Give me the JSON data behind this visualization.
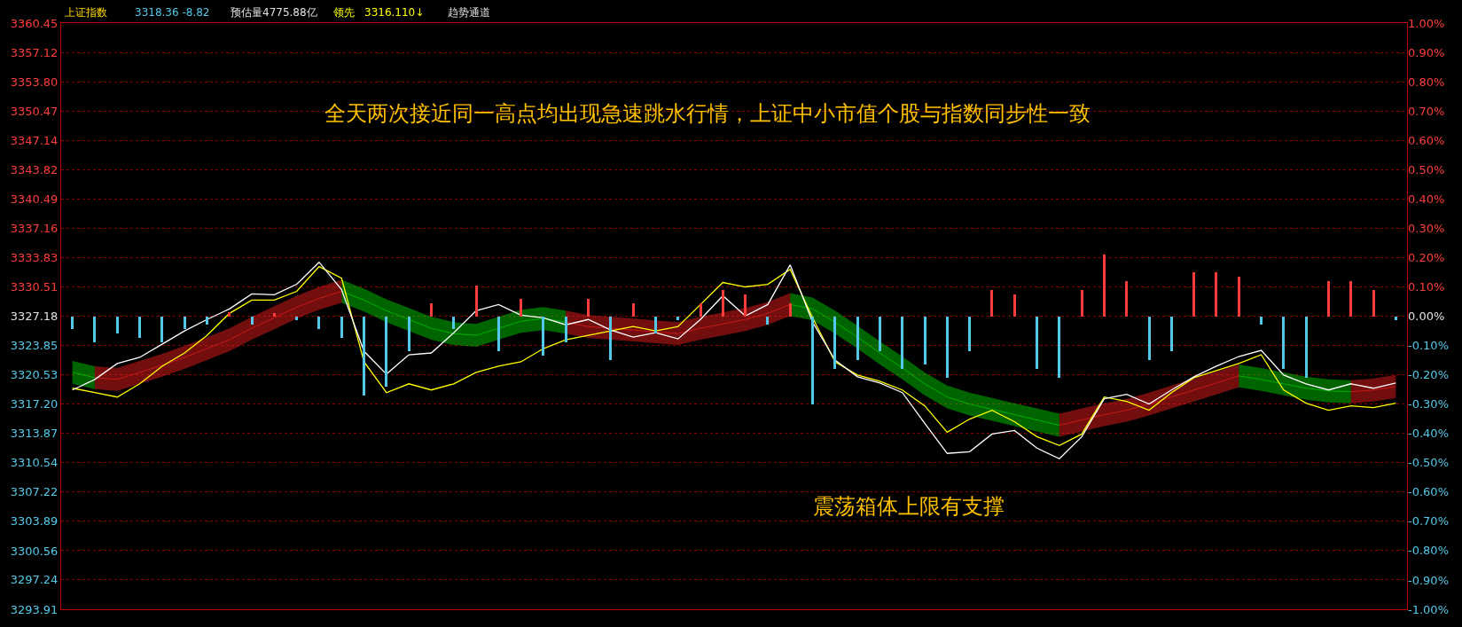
{
  "chart_data": {
    "type": "line",
    "annotations": [
      "上证指数",
      "3318.36 -8.82",
      "预估量4775.88亿",
      "领先",
      "3316.110↓",
      "趋势通道",
      "全天两次接近同一高点均出现急速跳水行情，上证中小市值个股与指数同步性一致",
      "震荡箱体上限有支撑"
    ],
    "categories": [
      null,
      null,
      null,
      null,
      null,
      null,
      null,
      null,
      null,
      null,
      null,
      null,
      null,
      null,
      null,
      null,
      null,
      null,
      null,
      null,
      null,
      null,
      null,
      null,
      null,
      null,
      null,
      null,
      null,
      null,
      null,
      null,
      null,
      null,
      null,
      null,
      null,
      null,
      null,
      null,
      null,
      null,
      null,
      null,
      null,
      null,
      null,
      null,
      null,
      null,
      null,
      null,
      null,
      null,
      null,
      null,
      null,
      null,
      null,
      null
    ],
    "series": [
      {
        "type": "bar",
        "values": [
          -1.5,
          -3,
          -2,
          -2.5,
          -3,
          -1.5,
          -1,
          0.5,
          -1,
          0.4,
          -0.5,
          -1.5,
          -2.5,
          -9,
          -8,
          -4,
          1.5,
          -1.5,
          3.5,
          -4,
          2,
          -4.5,
          -3,
          2,
          -5,
          1.5,
          -2,
          -0.5,
          1.5,
          3,
          2.5,
          -1,
          1.5,
          -10,
          -6,
          -5,
          -4,
          -6,
          -5.5,
          -7,
          -4,
          3,
          2.5,
          -6,
          -7,
          3,
          7,
          4,
          -5,
          -4,
          5,
          5,
          4.5,
          -1,
          -6,
          -7,
          4,
          4,
          3,
          -0.5
        ],
        "base": [
          3327.18,
          3327.18,
          3327.18,
          3327.18,
          3327.18,
          3327.18,
          3327.18,
          3327.18,
          3327.18,
          3327.18,
          3327.18,
          3327.18,
          3327.18,
          3327.18,
          3327.18,
          3327.18,
          3327.18,
          3327.18,
          3327.18,
          3327.18,
          3327.18,
          3327.18,
          3327.18,
          3327.18,
          3327.18,
          3327.18,
          3327.18,
          3327.18,
          3327.18,
          3327.18,
          3327.18,
          3327.18,
          3327.18,
          3327.18,
          3327.18,
          3327.18,
          3327.18,
          3327.18,
          3327.18,
          3327.18,
          3327.18,
          3327.18,
          3327.18,
          3327.18,
          3327.18,
          3327.18,
          3327.18,
          3327.18,
          3327.18,
          3327.18,
          3327.18,
          3327.18,
          3327.18,
          3327.18,
          3327.18,
          3327.18,
          3327.18,
          3327.18,
          3327.18,
          3327.18
        ],
        "colors": [
          "#54c8e8",
          "#54c8e8",
          "#54c8e8",
          "#54c8e8",
          "#54c8e8",
          "#54c8e8",
          "#54c8e8",
          "#ff3c3c",
          "#54c8e8",
          "#ff3c3c",
          "#54c8e8",
          "#54c8e8",
          "#54c8e8",
          "#54c8e8",
          "#54c8e8",
          "#54c8e8",
          "#ff3c3c",
          "#54c8e8",
          "#ff3c3c",
          "#54c8e8",
          "#ff3c3c",
          "#54c8e8",
          "#54c8e8",
          "#ff3c3c",
          "#54c8e8",
          "#ff3c3c",
          "#54c8e8",
          "#54c8e8",
          "#ff3c3c",
          "#ff3c3c",
          "#ff3c3c",
          "#54c8e8",
          "#ff3c3c",
          "#54c8e8",
          "#54c8e8",
          "#54c8e8",
          "#54c8e8",
          "#54c8e8",
          "#54c8e8",
          "#54c8e8",
          "#54c8e8",
          "#ff3c3c",
          "#ff3c3c",
          "#54c8e8",
          "#54c8e8",
          "#ff3c3c",
          "#ff3c3c",
          "#ff3c3c",
          "#54c8e8",
          "#54c8e8",
          "#ff3c3c",
          "#ff3c3c",
          "#ff3c3c",
          "#54c8e8",
          "#54c8e8",
          "#54c8e8",
          "#ff3c3c",
          "#ff3c3c",
          "#ff3c3c",
          "#54c8e8"
        ]
      },
      {
        "type": "line",
        "color": "#00e000",
        "values": [
          3320.8,
          3320.2,
          null,
          null,
          null,
          null,
          null,
          null,
          null,
          null,
          null,
          null,
          3330.0,
          3329.0,
          3327.8,
          3326.8,
          3325.8,
          3325.2,
          3325.0,
          3325.8,
          3326.6,
          3326.9,
          3326.5,
          null,
          null,
          null,
          null,
          null,
          null,
          null,
          null,
          null,
          3328.5,
          3328.0,
          3326.5,
          3324.8,
          3323.0,
          3321.3,
          3319.5,
          3318.0,
          3317.2,
          3316.6,
          3316.0,
          3315.4,
          3314.8,
          null,
          null,
          null,
          null,
          null,
          null,
          null,
          3320.4,
          3320.0,
          3319.5,
          3319.0,
          3318.7,
          3318.6,
          null,
          null
        ],
        "lower": [
          3319.5,
          3318.9,
          null,
          null,
          null,
          null,
          null,
          null,
          null,
          null,
          null,
          null,
          3328.7,
          3327.7,
          3326.5,
          3325.5,
          3324.5,
          3323.9,
          3323.7,
          3324.5,
          3325.3,
          3325.6,
          3325.2,
          null,
          null,
          null,
          null,
          null,
          null,
          null,
          null,
          null,
          3327.2,
          3326.7,
          3325.2,
          3323.5,
          3321.7,
          3320.0,
          3318.2,
          3316.7,
          3315.9,
          3315.3,
          3314.7,
          3314.1,
          3313.5,
          null,
          null,
          null,
          null,
          null,
          null,
          null,
          3319.1,
          3318.7,
          3318.2,
          3317.7,
          3317.4,
          3317.3,
          null,
          null
        ],
        "upper": [
          3322.1,
          3321.5,
          null,
          null,
          null,
          null,
          null,
          null,
          null,
          null,
          null,
          null,
          3331.3,
          3330.3,
          3329.1,
          3328.1,
          3327.1,
          3326.5,
          3326.3,
          3327.1,
          3327.9,
          3328.2,
          3327.8,
          null,
          null,
          null,
          null,
          null,
          null,
          null,
          null,
          null,
          3329.8,
          3329.3,
          3327.8,
          3326.1,
          3324.3,
          3322.6,
          3320.8,
          3319.3,
          3318.5,
          3317.9,
          3317.3,
          3316.7,
          3316.1,
          null,
          null,
          null,
          null,
          null,
          null,
          null,
          3321.7,
          3321.3,
          3320.8,
          3320.3,
          3320.0,
          3319.9,
          null,
          null
        ]
      },
      {
        "type": "line",
        "color": "#ff2020",
        "values": [
          null,
          3320.2,
          3320.0,
          3320.8,
          3321.6,
          3322.5,
          3323.5,
          3324.5,
          3325.8,
          3327.0,
          3328.2,
          3329.2,
          3330.0,
          null,
          null,
          null,
          null,
          null,
          null,
          null,
          null,
          null,
          3326.5,
          3326.0,
          3325.8,
          3325.6,
          3325.4,
          3325.2,
          3325.8,
          3326.3,
          3326.8,
          3327.5,
          3328.5,
          null,
          null,
          null,
          null,
          null,
          null,
          null,
          null,
          null,
          null,
          null,
          3314.8,
          3315.4,
          3316.0,
          3316.5,
          3317.2,
          3318.0,
          3318.8,
          3319.6,
          3320.4,
          null,
          null,
          null,
          null,
          3318.6,
          3318.8,
          3319.2
        ],
        "lower": [
          null,
          3318.9,
          3318.7,
          3319.5,
          3320.3,
          3321.2,
          3322.2,
          3323.2,
          3324.5,
          3325.7,
          3326.9,
          3327.9,
          3328.7,
          null,
          null,
          null,
          null,
          null,
          null,
          null,
          null,
          null,
          3325.2,
          3324.7,
          3324.5,
          3324.3,
          3324.1,
          3323.9,
          3324.5,
          3325.0,
          3325.5,
          3326.2,
          3327.2,
          null,
          null,
          null,
          null,
          null,
          null,
          null,
          null,
          null,
          null,
          null,
          3313.5,
          3314.1,
          3314.7,
          3315.2,
          3315.9,
          3316.7,
          3317.5,
          3318.3,
          3319.1,
          null,
          null,
          null,
          null,
          3317.3,
          3317.5,
          3317.9
        ],
        "upper": [
          null,
          3321.5,
          3321.3,
          3322.1,
          3322.9,
          3323.8,
          3324.8,
          3325.8,
          3327.1,
          3328.3,
          3329.5,
          3330.5,
          3331.3,
          null,
          null,
          null,
          null,
          null,
          null,
          null,
          null,
          null,
          3327.8,
          3327.3,
          3327.1,
          3326.9,
          3326.7,
          3326.5,
          3327.1,
          3327.6,
          3328.1,
          3328.8,
          3329.8,
          null,
          null,
          null,
          null,
          null,
          null,
          null,
          null,
          null,
          null,
          null,
          3316.1,
          3316.7,
          3317.3,
          3317.8,
          3318.5,
          3319.3,
          3320.1,
          3320.9,
          3321.7,
          null,
          null,
          null,
          null,
          3319.9,
          3320.1,
          3320.5
        ]
      },
      {
        "type": "line",
        "color": "#ffff00",
        "values": [
          3319,
          3318.5,
          3318,
          3319.5,
          3321.5,
          3323,
          3325,
          3327.5,
          3329,
          3329,
          3330,
          3332.8,
          3331.5,
          3322,
          3318.5,
          3319.5,
          3318.8,
          3319.5,
          3320.8,
          3321.5,
          3322,
          3323.5,
          3324.5,
          3325,
          3325.5,
          3326,
          3325.5,
          3326,
          3328.5,
          3331,
          3330.5,
          3330.8,
          3332.5,
          3327,
          3322,
          3320.5,
          3319.8,
          3318.8,
          3317,
          3314,
          3315.5,
          3316.5,
          3315.2,
          3313.5,
          3312.5,
          3313.8,
          3318,
          3317.5,
          3316.5,
          3318.5,
          3320.2,
          3321,
          3321.8,
          3322.8,
          3318.8,
          3317.3,
          3316.5,
          3317,
          3316.8,
          3317.3
        ]
      },
      {
        "color": "#ffffff",
        "values": [
          3318.8,
          3320,
          3321.8,
          3322.5,
          3324,
          3325.5,
          3326.8,
          3328,
          3329.7,
          3329.6,
          3330.8,
          3333.3,
          3330.2,
          3323.2,
          3320.6,
          3322.8,
          3323,
          3325.3,
          3327.8,
          3328.5,
          3327.3,
          3327,
          3326.2,
          3326.8,
          3325.6,
          3324.8,
          3325.3,
          3324.6,
          3326.8,
          3329.5,
          3327.2,
          3328.5,
          3333,
          3326.5,
          3322.2,
          3320.3,
          3319.6,
          3318.5,
          3315,
          3311.6,
          3311.8,
          3313.8,
          3314.2,
          3312.2,
          3311,
          3313.5,
          3317.8,
          3318.3,
          3317.2,
          3318.8,
          3320.3,
          3321.5,
          3322.6,
          3323.3,
          3320.5,
          3319.5,
          3318.8,
          3319.5,
          3319,
          3319.6
        ]
      }
    ],
    "ylim": [
      3293.91,
      3360.45
    ],
    "yticks": [
      3293.91,
      3297.24,
      3300.56,
      3303.89,
      3307.22,
      3310.54,
      3313.87,
      {
        "value": 3317.2,
        "label": "3317.20"
      },
      3320.53,
      3323.85,
      3327.18,
      3330.51,
      3333.83,
      3337.16,
      3340.49,
      3343.82,
      3347.14,
      3350.47,
      {
        "value": 3353.8,
        "label": "3353.80"
      },
      3357.12,
      3360.45
    ],
    "y2lim": [
      -1.0,
      1.0
    ],
    "y2ticks": [
      {
        "value": -1.0,
        "label": "-1.00%"
      },
      {
        "value": -0.9,
        "label": "-0.90%"
      },
      {
        "value": -0.8,
        "label": "-0.80%"
      },
      {
        "value": -0.7,
        "label": "-0.70%"
      },
      {
        "value": -0.6,
        "label": "-0.60%"
      },
      {
        "value": -0.5,
        "label": "-0.50%"
      },
      {
        "value": -0.4,
        "label": "-0.40%"
      },
      {
        "value": -0.3,
        "label": "-0.30%"
      },
      {
        "value": -0.2,
        "label": "-0.20%"
      },
      {
        "value": -0.1,
        "label": "-0.10%"
      },
      {
        "value": 0,
        "label": "0.00%"
      },
      {
        "value": 0.1,
        "label": "0.10%"
      },
      {
        "value": 0.2,
        "label": "0.20%"
      },
      {
        "value": 0.3,
        "label": "0.30%"
      },
      {
        "value": 0.4,
        "label": "0.40%"
      },
      {
        "value": 0.5,
        "label": "0.50%"
      },
      {
        "value": 0.6,
        "label": "0.60%"
      },
      {
        "value": 0.7,
        "label": "0.70%"
      },
      {
        "value": 0.8,
        "label": "0.80%"
      },
      {
        "value": 0.9,
        "label": "0.90%"
      },
      {
        "value": 1.0,
        "label": "1.00%"
      }
    ],
    "grid": "y",
    "tick_labels": "y"
  }
}
